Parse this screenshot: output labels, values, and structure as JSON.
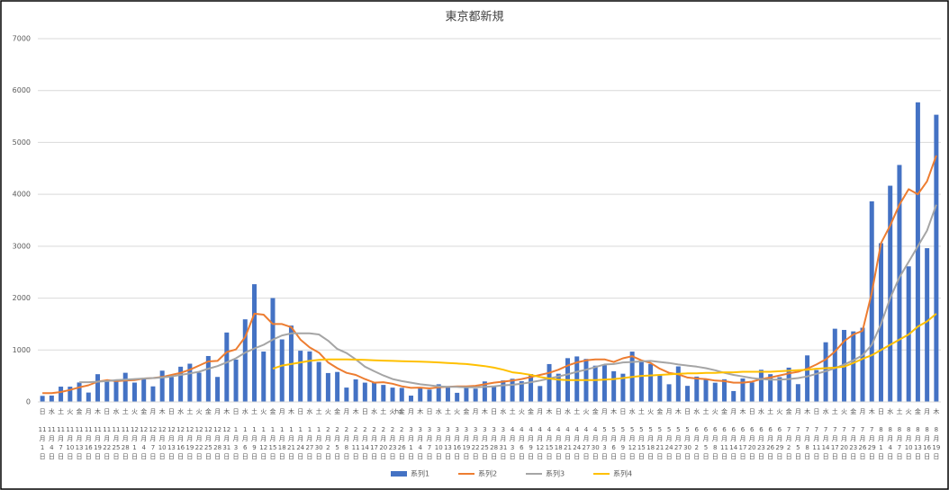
{
  "chart_data": {
    "type": "bar_line",
    "title": "東京都新規",
    "annotation": "ha",
    "categories": [
      "11月1日",
      "11月4日",
      "11月7日",
      "11月10日",
      "11月13日",
      "11月16日",
      "11月19日",
      "11月22日",
      "11月25日",
      "11月28日",
      "12月1日",
      "12月4日",
      "12月7日",
      "12月10日",
      "12月13日",
      "12月16日",
      "12月19日",
      "12月22日",
      "12月25日",
      "12月28日",
      "12月31日",
      "1月3日",
      "1月6日",
      "1月9日",
      "1月12日",
      "1月15日",
      "1月18日",
      "1月21日",
      "1月24日",
      "1月27日",
      "1月30日",
      "2月2日",
      "2月5日",
      "2月8日",
      "2月11日",
      "2月14日",
      "2月17日",
      "2月20日",
      "2月23日",
      "2月26日",
      "3月1日",
      "3月4日",
      "3月7日",
      "3月10日",
      "3月13日",
      "3月16日",
      "3月19日",
      "3月22日",
      "3月25日",
      "3月28日",
      "3月31日",
      "4月3日",
      "4月6日",
      "4月9日",
      "4月12日",
      "4月15日",
      "4月18日",
      "4月21日",
      "4月24日",
      "4月27日",
      "4月30日",
      "5月3日",
      "5月6日",
      "5月9日",
      "5月12日",
      "5月15日",
      "5月18日",
      "5月21日",
      "5月24日",
      "5月27日",
      "5月30日",
      "6月2日",
      "6月5日",
      "6月8日",
      "6月11日",
      "6月14日",
      "6月17日",
      "6月20日",
      "6月23日",
      "6月26日",
      "6月29日",
      "7月2日",
      "7月5日",
      "7月8日",
      "7月11日",
      "7月14日",
      "7月17日",
      "7月20日",
      "7月23日",
      "7月26日",
      "7月29日",
      "8月1日",
      "8月4日",
      "8月7日",
      "8月10日",
      "8月13日",
      "8月16日",
      "8月19日"
    ],
    "weekdays": [
      "日",
      "水",
      "土",
      "火",
      "金",
      "月",
      "木",
      "日",
      "水",
      "土",
      "火",
      "金",
      "月",
      "木",
      "日",
      "水",
      "土",
      "火",
      "金",
      "月",
      "木",
      "日",
      "水",
      "土",
      "火",
      "金",
      "月",
      "木",
      "日",
      "水",
      "土",
      "火",
      "金",
      "月",
      "木",
      "日",
      "水",
      "土",
      "火",
      "金",
      "月",
      "木",
      "日",
      "水",
      "土",
      "火",
      "金",
      "月",
      "木",
      "日",
      "水",
      "土",
      "火",
      "金",
      "月",
      "木",
      "日",
      "水",
      "土",
      "火",
      "金",
      "月",
      "木",
      "日",
      "水",
      "土",
      "火",
      "金",
      "月",
      "木",
      "日",
      "水",
      "土",
      "火",
      "金",
      "月",
      "木",
      "日",
      "水",
      "土",
      "火",
      "金",
      "月",
      "木",
      "日",
      "水",
      "土",
      "火",
      "金",
      "月",
      "木",
      "日",
      "水",
      "土",
      "火",
      "金",
      "月",
      "木"
    ],
    "series": [
      {
        "name": "系列1",
        "kind": "bar",
        "color": "#4472c4",
        "values": [
          116,
          122,
          294,
          293,
          374,
          180,
          534,
          391,
          401,
          561,
          372,
          449,
          299,
          602,
          480,
          678,
          736,
          563,
          884,
          481,
          1337,
          816,
          1591,
          2268,
          970,
          2001,
          1204,
          1471,
          986,
          973,
          769,
          556,
          577,
          276,
          434,
          371,
          378,
          327,
          275,
          270,
          121,
          279,
          237,
          340,
          293,
          175,
          303,
          256,
          394,
          313,
          414,
          446,
          399,
          537,
          306,
          729,
          543,
          843,
          876,
          828,
          698,
          708,
          591,
          543,
          969,
          772,
          732,
          521,
          340,
          684,
          309,
          487,
          436,
          369,
          436,
          209,
          452,
          376,
          619,
          534,
          476,
          660,
          342,
          896,
          614,
          1149,
          1410,
          1387,
          1359,
          1429,
          3865,
          3058,
          4166,
          4566,
          2612,
          5773,
          2962,
          5534
        ]
      },
      {
        "name": "系列2",
        "kind": "line",
        "color": "#ed7d31",
        "values": [
          170,
          170,
          190,
          230,
          280,
          320,
          390,
          420,
          400,
          410,
          420,
          450,
          460,
          480,
          520,
          560,
          620,
          700,
          780,
          790,
          960,
          1010,
          1250,
          1700,
          1680,
          1500,
          1500,
          1440,
          1200,
          1050,
          950,
          760,
          650,
          560,
          520,
          440,
          370,
          380,
          350,
          300,
          270,
          275,
          260,
          280,
          290,
          300,
          300,
          310,
          340,
          370,
          390,
          410,
          440,
          480,
          520,
          560,
          620,
          700,
          760,
          800,
          820,
          820,
          770,
          840,
          880,
          800,
          750,
          640,
          560,
          530,
          470,
          450,
          440,
          410,
          400,
          370,
          370,
          390,
          440,
          470,
          510,
          550,
          580,
          640,
          720,
          820,
          970,
          1170,
          1300,
          1370,
          2100,
          3060,
          3400,
          3800,
          4100,
          4000,
          4250,
          4750
        ]
      },
      {
        "name": "系列3",
        "kind": "line",
        "color": "#a5a5a5",
        "values": [
          null,
          null,
          null,
          null,
          380,
          380,
          390,
          400,
          420,
          430,
          440,
          450,
          460,
          470,
          490,
          520,
          550,
          580,
          640,
          690,
          760,
          840,
          950,
          1030,
          1100,
          1200,
          1280,
          1320,
          1320,
          1320,
          1300,
          1180,
          1020,
          940,
          820,
          680,
          590,
          510,
          440,
          400,
          370,
          340,
          320,
          300,
          290,
          290,
          280,
          280,
          290,
          300,
          320,
          330,
          350,
          380,
          410,
          450,
          490,
          530,
          580,
          620,
          670,
          720,
          730,
          760,
          770,
          780,
          790,
          770,
          750,
          720,
          700,
          680,
          650,
          610,
          560,
          520,
          490,
          460,
          440,
          430,
          430,
          440,
          460,
          490,
          540,
          590,
          650,
          720,
          800,
          900,
          1100,
          1500,
          2000,
          2400,
          2700,
          3000,
          3300,
          3800
        ]
      },
      {
        "name": "系列4",
        "kind": "line",
        "color": "#ffc000",
        "values": [
          null,
          null,
          null,
          null,
          null,
          null,
          null,
          null,
          null,
          null,
          null,
          null,
          null,
          null,
          null,
          null,
          null,
          null,
          null,
          null,
          null,
          null,
          null,
          null,
          null,
          640,
          700,
          730,
          760,
          790,
          810,
          820,
          820,
          820,
          815,
          810,
          800,
          795,
          790,
          785,
          780,
          775,
          770,
          760,
          750,
          740,
          730,
          710,
          690,
          660,
          620,
          570,
          550,
          520,
          480,
          450,
          430,
          420,
          420,
          420,
          420,
          430,
          440,
          460,
          480,
          500,
          510,
          520,
          530,
          540,
          550,
          550,
          560,
          560,
          570,
          570,
          580,
          580,
          580,
          580,
          590,
          600,
          610,
          620,
          640,
          650,
          660,
          680,
          750,
          830,
          900,
          1000,
          1100,
          1200,
          1300,
          1450,
          1550,
          1700
        ]
      }
    ],
    "ylim": [
      0,
      7000
    ],
    "yticks": [
      0,
      1000,
      2000,
      3000,
      4000,
      5000,
      6000,
      7000
    ],
    "grid": true,
    "legend": "bottom"
  }
}
